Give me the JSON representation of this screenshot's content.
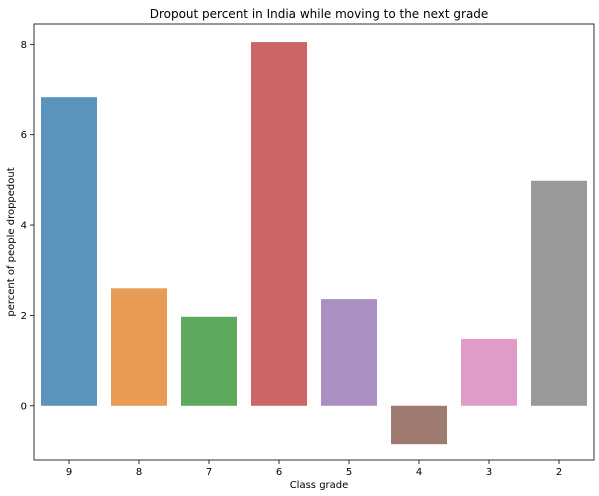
{
  "chart_data": {
    "type": "bar",
    "title": "Dropout percent in India while moving to the next grade",
    "xlabel": "Class grade",
    "ylabel": "percent of people droppedout",
    "categories": [
      "9",
      "8",
      "7",
      "6",
      "5",
      "4",
      "3",
      "2"
    ],
    "values": [
      6.83,
      2.6,
      1.97,
      8.05,
      2.36,
      -0.85,
      1.48,
      4.98
    ],
    "ylim": [
      -1.2,
      8.45
    ],
    "yticks": [
      0,
      2,
      4,
      6,
      8
    ],
    "grid": false,
    "colors": [
      "#5b93bd",
      "#e89b55",
      "#5daa5c",
      "#cc6565",
      "#a98fc2",
      "#9e7a70",
      "#df9cc9",
      "#999999"
    ]
  }
}
